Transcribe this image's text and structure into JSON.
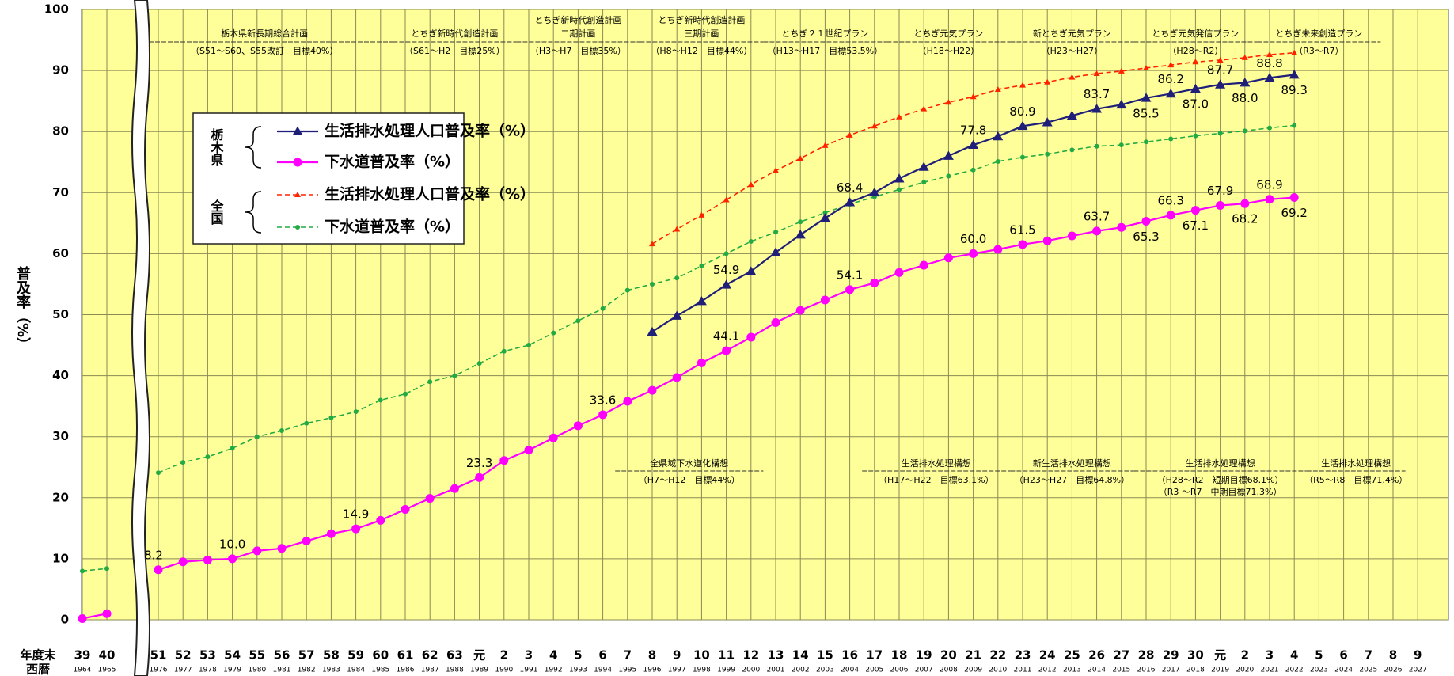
{
  "chart_data": {
    "type": "line",
    "y_label": "普及率（%）",
    "x_row_labels": [
      "年度末",
      "西暦"
    ],
    "categories": [
      "39",
      "40",
      "51",
      "52",
      "53",
      "54",
      "55",
      "56",
      "57",
      "58",
      "59",
      "60",
      "61",
      "62",
      "63",
      "元",
      "2",
      "3",
      "4",
      "5",
      "6",
      "7",
      "8",
      "9",
      "10",
      "11",
      "12",
      "13",
      "14",
      "15",
      "16",
      "17",
      "18",
      "19",
      "20",
      "21",
      "22",
      "23",
      "24",
      "25",
      "26",
      "27",
      "28",
      "29",
      "30",
      "元",
      "2",
      "3",
      "4",
      "5",
      "6",
      "7",
      "8",
      "9"
    ],
    "years": [
      "1964",
      "1965",
      "1976",
      "1977",
      "1978",
      "1979",
      "1980",
      "1981",
      "1982",
      "1983",
      "1984",
      "1985",
      "1986",
      "1987",
      "1988",
      "1989",
      "1990",
      "1991",
      "1992",
      "1993",
      "1994",
      "1995",
      "1996",
      "1997",
      "1998",
      "1999",
      "2000",
      "2001",
      "2002",
      "2003",
      "2004",
      "2005",
      "2006",
      "2007",
      "2008",
      "2009",
      "2010",
      "2011",
      "2012",
      "2013",
      "2014",
      "2015",
      "2016",
      "2017",
      "2018",
      "2019",
      "2020",
      "2021",
      "2022",
      "2023",
      "2024",
      "2025",
      "2026",
      "2027"
    ],
    "ylim": [
      0,
      100
    ],
    "yticks": [
      0,
      10,
      20,
      30,
      40,
      50,
      60,
      70,
      80,
      90,
      100
    ],
    "grid": true,
    "background": "#ffff99",
    "series": [
      {
        "name": "生活排水処理人口普及率（%）",
        "group": "栃木県",
        "color": "#1f1f7a",
        "dash": false,
        "marker": "triangle",
        "values": [
          null,
          null,
          null,
          null,
          null,
          null,
          null,
          null,
          null,
          null,
          null,
          null,
          null,
          null,
          null,
          null,
          null,
          null,
          null,
          null,
          null,
          null,
          47.2,
          49.8,
          52.2,
          54.9,
          57.1,
          60.2,
          63.1,
          65.8,
          68.4,
          70.0,
          72.3,
          74.2,
          76.0,
          77.8,
          79.2,
          80.9,
          81.5,
          82.6,
          83.7,
          84.4,
          85.5,
          86.2,
          87.0,
          87.7,
          88.0,
          88.8,
          89.3,
          null,
          null,
          null,
          null,
          null
        ],
        "value_labels": [
          null,
          null,
          null,
          null,
          null,
          null,
          null,
          null,
          null,
          null,
          null,
          null,
          null,
          null,
          null,
          null,
          null,
          null,
          null,
          null,
          null,
          null,
          null,
          null,
          null,
          "54.9",
          null,
          null,
          null,
          null,
          "68.4",
          null,
          null,
          null,
          null,
          "77.8",
          null,
          "80.9",
          null,
          null,
          "83.7",
          null,
          "85.5",
          "86.2",
          "87.0",
          "87.7",
          "88.0",
          "88.8",
          "89.3",
          null,
          null,
          null,
          null,
          null
        ]
      },
      {
        "name": "下水道普及率（%）",
        "group": "栃木県",
        "color": "#ff00ff",
        "dash": false,
        "marker": "circle",
        "values": [
          0.2,
          1.0,
          8.2,
          9.5,
          9.8,
          10.0,
          11.3,
          11.7,
          12.9,
          14.1,
          14.9,
          16.3,
          18.1,
          19.9,
          21.5,
          23.3,
          26.1,
          27.8,
          29.8,
          31.8,
          33.6,
          35.8,
          37.6,
          39.7,
          42.1,
          44.1,
          46.3,
          48.7,
          50.7,
          52.4,
          54.1,
          55.2,
          56.9,
          58.1,
          59.3,
          60.0,
          60.7,
          61.5,
          62.1,
          62.9,
          63.7,
          64.3,
          65.3,
          66.3,
          67.1,
          67.9,
          68.2,
          68.9,
          69.2,
          null,
          null,
          null,
          null,
          null
        ],
        "value_labels": [
          null,
          null,
          "8.2",
          null,
          null,
          "10.0",
          null,
          null,
          null,
          null,
          "14.9",
          null,
          null,
          null,
          null,
          "23.3",
          null,
          null,
          null,
          null,
          "33.6",
          null,
          null,
          null,
          null,
          "44.1",
          null,
          null,
          null,
          null,
          "54.1",
          null,
          null,
          null,
          null,
          "60.0",
          null,
          "61.5",
          null,
          null,
          "63.7",
          null,
          "65.3",
          "66.3",
          "67.1",
          "67.9",
          "68.2",
          "68.9",
          "69.2",
          null,
          null,
          null,
          null,
          null
        ]
      },
      {
        "name": "生活排水処理人口普及率（%）",
        "group": "全国",
        "color": "#ff2200",
        "dash": true,
        "marker": "triangle",
        "values": [
          null,
          null,
          null,
          null,
          null,
          null,
          null,
          null,
          null,
          null,
          null,
          null,
          null,
          null,
          null,
          null,
          null,
          null,
          null,
          null,
          null,
          null,
          61.6,
          64.0,
          66.3,
          68.8,
          71.3,
          73.6,
          75.6,
          77.7,
          79.4,
          80.9,
          82.4,
          83.7,
          84.8,
          85.7,
          86.9,
          87.6,
          88.1,
          88.9,
          89.5,
          89.9,
          90.4,
          90.9,
          91.4,
          91.7,
          92.1,
          92.6,
          92.9,
          null,
          null,
          null,
          null,
          null
        ]
      },
      {
        "name": "下水道普及率（%）",
        "group": "全国",
        "color": "#22aa44",
        "dash": true,
        "marker": "circle",
        "values": [
          8.0,
          8.4,
          24.1,
          25.8,
          26.7,
          28.1,
          30.0,
          31.0,
          32.2,
          33.1,
          34.1,
          36.0,
          37.0,
          39.0,
          40.0,
          42.0,
          44.0,
          45.0,
          47.0,
          49.0,
          51.0,
          54.0,
          55.0,
          56.0,
          58.0,
          60.0,
          62.0,
          63.5,
          65.2,
          66.7,
          68.1,
          69.3,
          70.5,
          71.7,
          72.7,
          73.7,
          75.1,
          75.8,
          76.3,
          77.0,
          77.6,
          77.8,
          78.3,
          78.8,
          79.3,
          79.7,
          80.1,
          80.6,
          81.0,
          null,
          null,
          null,
          null,
          null
        ]
      }
    ],
    "top_plans": [
      {
        "lines": [
          "栃木県新長期総合計画",
          "（S51～S60、S55改訂　目標40%）"
        ]
      },
      {
        "lines": [
          "とちぎ新時代創造計画",
          "（S61～H2　目標25%）"
        ]
      },
      {
        "lines": [
          "とちぎ新時代創造計画",
          "二期計画",
          "（H3～H7　目標35%）"
        ]
      },
      {
        "lines": [
          "とちぎ新時代創造計画",
          "三期計画",
          "（H8～H12　目標44%）"
        ]
      },
      {
        "lines": [
          "とちぎ２１世紀プラン",
          "（H13～H17　目標53.5%）"
        ]
      },
      {
        "lines": [
          "とちぎ元気プラン",
          "（H18～H22）"
        ]
      },
      {
        "lines": [
          "新とちぎ元気プラン",
          "（H23～H27）"
        ]
      },
      {
        "lines": [
          "とちぎ元気発信プラン",
          "（H28～R2）"
        ]
      },
      {
        "lines": [
          "とちぎ未来創造プラン",
          "（R3～R7）"
        ]
      }
    ],
    "bottom_plans": [
      {
        "lines": [
          "全県域下水道化構想",
          "（H7～H12　目標44%）"
        ]
      },
      {
        "lines": [
          "生活排水処理構想",
          "（H17～H22　目標63.1%）"
        ]
      },
      {
        "lines": [
          "新生活排水処理構想",
          "（H23～H27　目標64.8%）"
        ]
      },
      {
        "lines": [
          "生活排水処理構想",
          "（H28～R2　短期目標68.1%）",
          "（R3 ～R7　中期目標71.3%）"
        ]
      },
      {
        "lines": [
          "生活排水処理構想",
          "（R5～R8　目標71.4%）"
        ]
      }
    ]
  }
}
